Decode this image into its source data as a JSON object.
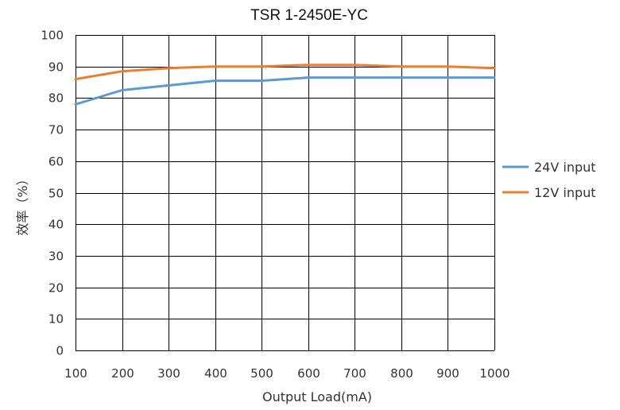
{
  "chart_data": {
    "type": "line",
    "title": "TSR 1-2450E-YC",
    "xlabel": "Output Load(mA)",
    "ylabel": "效率（%）",
    "x": [
      100,
      200,
      300,
      400,
      500,
      600,
      700,
      800,
      900,
      1000
    ],
    "x_ticks": [
      "100",
      "200",
      "300",
      "400",
      "500",
      "600",
      "700",
      "800",
      "900",
      "1000"
    ],
    "xlim": [
      100,
      1000
    ],
    "y_ticks": [
      "0",
      "10",
      "20",
      "30",
      "40",
      "50",
      "60",
      "70",
      "80",
      "90",
      "100"
    ],
    "ylim": [
      0,
      100
    ],
    "grid": true,
    "legend_position": "right",
    "series": [
      {
        "name": "24V input",
        "color": "#5b9bd5",
        "values": [
          78,
          82.5,
          84,
          85.5,
          85.5,
          86.5,
          86.5,
          86.5,
          86.5,
          86.5
        ]
      },
      {
        "name": "12V input",
        "color": "#ed7d31",
        "values": [
          86,
          88.5,
          89.5,
          90,
          90,
          90.5,
          90.5,
          90,
          90,
          89.5
        ]
      }
    ]
  }
}
